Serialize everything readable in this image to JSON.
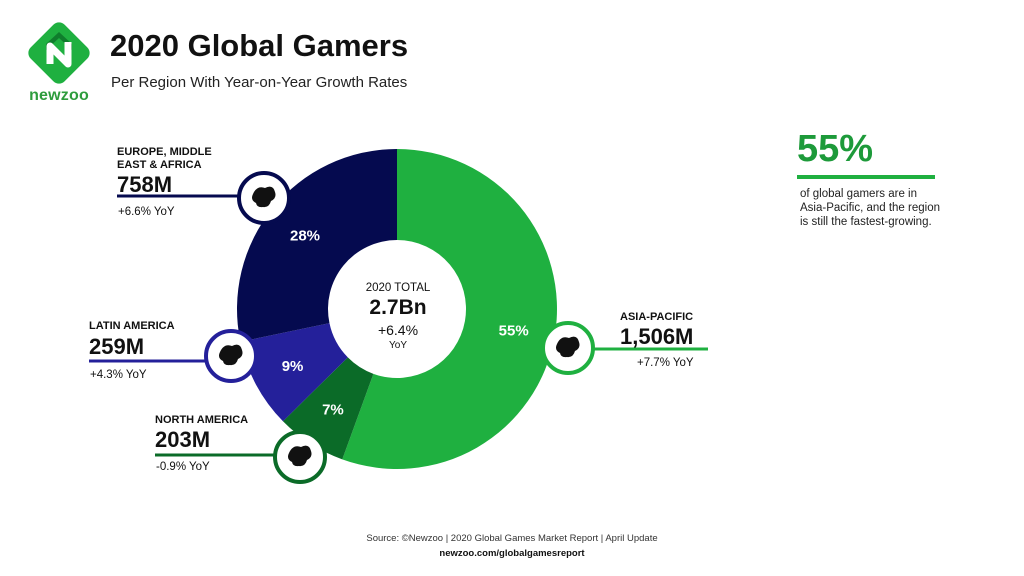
{
  "brand": {
    "logo_text": "newzoo",
    "green": "#1fb040",
    "dark_green": "#0b6b28"
  },
  "header": {
    "title": "2020 Global Gamers",
    "subtitle": "Per Region With Year-on-Year Growth Rates"
  },
  "center": {
    "label": "2020 TOTAL",
    "value": "2.7Bn",
    "growth": "+6.4%",
    "yoy": "YoY"
  },
  "highlight": {
    "value": "55%",
    "text": "of global gamers are in Asia-Pacific, and the region is still the fastest-growing."
  },
  "footer": {
    "source": "Source: ©Newzoo | 2020 Global Games Market Report | April Update",
    "url": "newzoo.com/globalgamesreport"
  },
  "chart_data": {
    "type": "pie",
    "title": "2020 Global Gamers",
    "subtitle": "Per Region With Year-on-Year Growth Rates",
    "slices": [
      {
        "name_line1": "ASIA-PACIFIC",
        "name_line2": "",
        "percent": 55,
        "percent_label": "55%",
        "value": 1506,
        "value_label": "1,506M",
        "yoy": "+7.7% YoY",
        "color": "#1fb040",
        "icon": "asia-pacific-map-icon"
      },
      {
        "name_line1": "NORTH AMERICA",
        "name_line2": "",
        "percent": 7,
        "percent_label": "7%",
        "value": 203,
        "value_label": "203M",
        "yoy": "-0.9% YoY",
        "color": "#0b6b28",
        "icon": "north-america-map-icon"
      },
      {
        "name_line1": "LATIN AMERICA",
        "name_line2": "",
        "percent": 9,
        "percent_label": "9%",
        "value": 259,
        "value_label": "259M",
        "yoy": "+4.3% YoY",
        "color": "#24209a",
        "icon": "latin-america-map-icon"
      },
      {
        "name_line1": "EUROPE, MIDDLE",
        "name_line2": "EAST & AFRICA",
        "percent": 28,
        "percent_label": "28%",
        "value": 758,
        "value_label": "758M",
        "yoy": "+6.6% YoY",
        "color": "#050a4f",
        "icon": "europe-africa-map-icon"
      }
    ]
  }
}
